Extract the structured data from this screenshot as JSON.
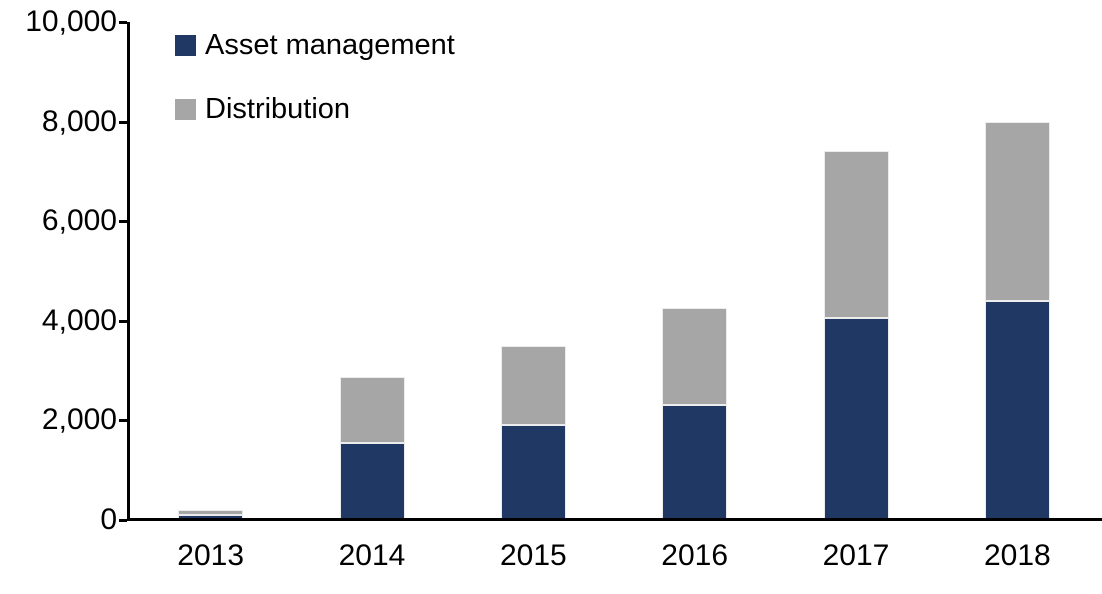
{
  "chart_data": {
    "type": "bar",
    "stacked": true,
    "title": "",
    "xlabel": "",
    "ylabel": "",
    "categories": [
      "2013",
      "2014",
      "2015",
      "2016",
      "2017",
      "2018"
    ],
    "series": [
      {
        "name": "Asset management",
        "color": "#1F3864",
        "values": [
          100,
          1550,
          1900,
          2300,
          4050,
          4400
        ]
      },
      {
        "name": "Distribution",
        "color": "#A6A6A6",
        "values": [
          100,
          1330,
          1600,
          1950,
          3350,
          3600
        ]
      }
    ],
    "totals": [
      200,
      2880,
      3500,
      4250,
      7400,
      8000
    ],
    "ylim": [
      0,
      10000
    ],
    "yticks": [
      0,
      2000,
      4000,
      6000,
      8000,
      10000
    ],
    "ytick_labels": [
      "0",
      "2,000",
      "4,000",
      "6,000",
      "8,000",
      "10,000"
    ],
    "grid": false,
    "legend_position": "top-left-inside"
  },
  "colors": {
    "axis": "#000000",
    "background": "#FFFFFF",
    "asset_management": "#1F3864",
    "distribution": "#A6A6A6"
  }
}
